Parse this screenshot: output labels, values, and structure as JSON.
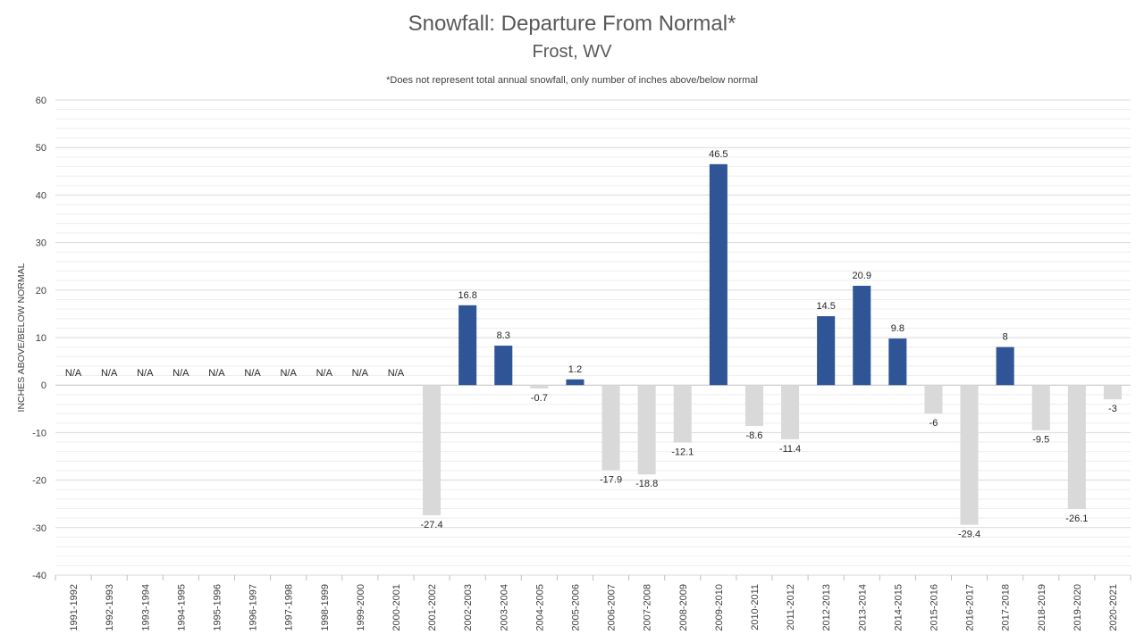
{
  "chart_data": {
    "type": "bar",
    "title": "Snowfall: Departure From Normal*",
    "subtitle": "Frost, WV",
    "note": "*Does not represent  total annual snowfall, only number of inches above/below normal",
    "ylabel": "INCHES ABOVE/BELOW NORMAL",
    "xlabel": "",
    "ylim": [
      -40,
      60
    ],
    "yticks": [
      60,
      50,
      40,
      30,
      20,
      10,
      0,
      -10,
      -20,
      -30,
      -40
    ],
    "grid": true,
    "legend": "none",
    "categories": [
      "1991-1992",
      "1992-1993",
      "1993-1994",
      "1994-1995",
      "1995-1996",
      "1996-1997",
      "1997-1998",
      "1998-1999",
      "1999-2000",
      "2000-2001",
      "2001-2002",
      "2002-2003",
      "2003-2004",
      "2004-2005",
      "2005-2006",
      "2006-2007",
      "2007-2008",
      "2008-2009",
      "2009-2010",
      "2010-2011",
      "2011-2012",
      "2012-2013",
      "2013-2014",
      "2014-2015",
      "2015-2016",
      "2016-2017",
      "2017-2018",
      "2018-2019",
      "2019-2020",
      "2020-2021"
    ],
    "values": [
      null,
      null,
      null,
      null,
      null,
      null,
      null,
      null,
      null,
      null,
      -27.4,
      16.8,
      8.3,
      -0.7,
      1.2,
      -17.9,
      -18.8,
      -12.1,
      46.5,
      -8.6,
      -11.4,
      14.5,
      20.9,
      9.8,
      -6,
      -29.4,
      8,
      -9.5,
      -26.1,
      -3
    ],
    "labels": [
      "N/A",
      "N/A",
      "N/A",
      "N/A",
      "N/A",
      "N/A",
      "N/A",
      "N/A",
      "N/A",
      "N/A",
      "-27.4",
      "16.8",
      "8.3",
      "-0.7",
      "1.2",
      "-17.9",
      "-18.8",
      "-12.1",
      "46.5",
      "-8.6",
      "-11.4",
      "14.5",
      "20.9",
      "9.8",
      "-6",
      "-29.4",
      "8",
      "-9.5",
      "-26.1",
      "-3"
    ],
    "colors": {
      "positive": "#2f5597",
      "negative": "#d9d9d9",
      "grid": "#d9d9d9",
      "minor_grid": "#eeeeee",
      "axis": "#bfbfbf"
    }
  }
}
